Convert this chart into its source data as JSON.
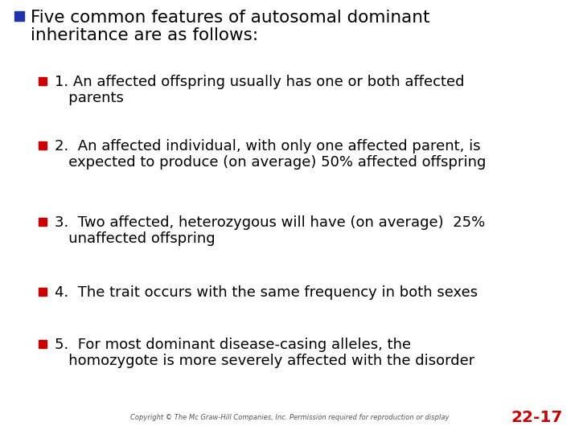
{
  "background_color": "#ffffff",
  "title_bullet_color": "#2233aa",
  "sub_bullet_color": "#cc0000",
  "title_text_color": "#000000",
  "body_text_color": "#000000",
  "page_num_color": "#cc0000",
  "title_line1": "Five common features of autosomal dominant",
  "title_line2": "inheritance are as follows:",
  "bullet_lines": [
    [
      "1. An affected offspring usually has one or both affected",
      "   parents"
    ],
    [
      "2.  An affected individual, with only one affected parent, is",
      "   expected to produce (on average) 50% affected offspring"
    ],
    [
      "3.  Two affected, heterozygous will have (on average)  25%",
      "   unaffected offspring"
    ],
    [
      "4.  The trait occurs with the same frequency in both sexes"
    ],
    [
      "5.  For most dominant disease-casing alleles, the",
      "   homozygote is more severely affected with the disorder"
    ]
  ],
  "copyright_text": "Copyright © The Mc Graw-Hill Companies, Inc. Permission required for reproduction or display",
  "page_number": "22-17",
  "title_fontsize": 15.5,
  "bullet_fontsize": 13.0,
  "copyright_fontsize": 6.0,
  "page_num_fontsize": 14.5
}
